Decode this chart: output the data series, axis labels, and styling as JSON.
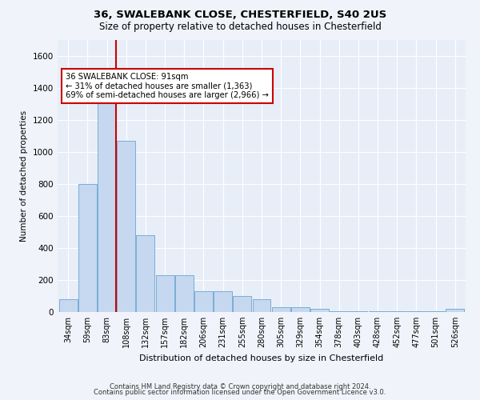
{
  "title1": "36, SWALEBANK CLOSE, CHESTERFIELD, S40 2US",
  "title2": "Size of property relative to detached houses in Chesterfield",
  "xlabel": "Distribution of detached houses by size in Chesterfield",
  "ylabel": "Number of detached properties",
  "footnote1": "Contains HM Land Registry data © Crown copyright and database right 2024.",
  "footnote2": "Contains public sector information licensed under the Open Government Licence v3.0.",
  "bar_labels": [
    "34sqm",
    "59sqm",
    "83sqm",
    "108sqm",
    "132sqm",
    "157sqm",
    "182sqm",
    "206sqm",
    "231sqm",
    "255sqm",
    "280sqm",
    "305sqm",
    "329sqm",
    "354sqm",
    "378sqm",
    "403sqm",
    "428sqm",
    "452sqm",
    "477sqm",
    "501sqm",
    "526sqm"
  ],
  "bar_values": [
    80,
    800,
    1320,
    1070,
    480,
    230,
    230,
    130,
    130,
    100,
    80,
    30,
    30,
    20,
    5,
    5,
    5,
    5,
    5,
    5,
    20
  ],
  "bar_color": "#c5d8f0",
  "bar_edge_color": "#7aadd4",
  "ylim": [
    0,
    1700
  ],
  "yticks": [
    0,
    200,
    400,
    600,
    800,
    1000,
    1200,
    1400,
    1600
  ],
  "annotation_text": "36 SWALEBANK CLOSE: 91sqm\n← 31% of detached houses are smaller (1,363)\n69% of semi-detached houses are larger (2,966) →",
  "annotation_box_color": "#ffffff",
  "annotation_border_color": "#cc0000",
  "bg_color": "#e8eef8",
  "grid_color": "#ffffff",
  "fig_bg_color": "#f0f4fa"
}
